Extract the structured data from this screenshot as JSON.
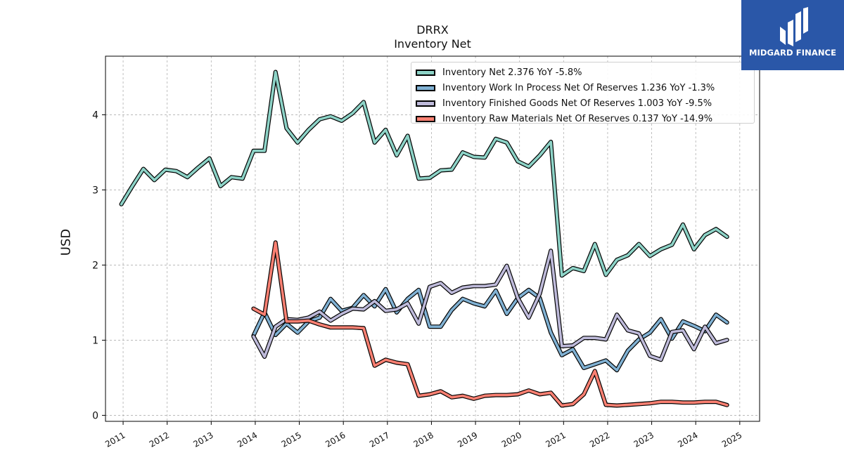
{
  "header": {
    "ticker": "DRRX",
    "subtitle": "Inventory Net"
  },
  "logo": {
    "text": "MIDGARD FINANCE"
  },
  "chart_data": {
    "type": "line",
    "ylabel": "USD",
    "xlim": [
      2010.6,
      2025.45
    ],
    "ylim": [
      -0.08,
      4.78
    ],
    "yticks": [
      0,
      1,
      2,
      3,
      4
    ],
    "xticks": [
      2011,
      2012,
      2013,
      2014,
      2015,
      2016,
      2017,
      2018,
      2019,
      2020,
      2021,
      2022,
      2023,
      2024,
      2025
    ],
    "grid": true,
    "legend_position": "top-right",
    "series": [
      {
        "name": "Inventory Net",
        "legend": "Inventory Net  2.376 YoY -5.8%",
        "color": "#8dd3c7",
        "x": [
          2010.96,
          2011.21,
          2011.46,
          2011.71,
          2011.96,
          2012.21,
          2012.46,
          2012.71,
          2012.96,
          2013.21,
          2013.46,
          2013.71,
          2013.96,
          2014.21,
          2014.46,
          2014.71,
          2014.96,
          2015.21,
          2015.46,
          2015.71,
          2015.96,
          2016.21,
          2016.46,
          2016.71,
          2016.96,
          2017.21,
          2017.46,
          2017.71,
          2017.96,
          2018.21,
          2018.46,
          2018.71,
          2018.96,
          2019.21,
          2019.46,
          2019.71,
          2019.96,
          2020.21,
          2020.46,
          2020.71,
          2020.96,
          2021.21,
          2021.46,
          2021.71,
          2021.96,
          2022.21,
          2022.46,
          2022.71,
          2022.96,
          2023.21,
          2023.46,
          2023.71,
          2023.96,
          2024.21,
          2024.46,
          2024.71
        ],
        "values": [
          2.81,
          3.05,
          3.28,
          3.13,
          3.27,
          3.25,
          3.17,
          3.3,
          3.42,
          3.05,
          3.17,
          3.15,
          3.52,
          3.52,
          4.57,
          3.82,
          3.63,
          3.8,
          3.94,
          3.98,
          3.92,
          4.02,
          4.17,
          3.63,
          3.8,
          3.46,
          3.72,
          3.15,
          3.16,
          3.26,
          3.27,
          3.5,
          3.44,
          3.43,
          3.68,
          3.63,
          3.38,
          3.31,
          3.46,
          3.64,
          1.86,
          1.96,
          1.92,
          2.28,
          1.87,
          2.07,
          2.13,
          2.28,
          2.12,
          2.21,
          2.27,
          2.54,
          2.21,
          2.4,
          2.48,
          2.376
        ]
      },
      {
        "name": "Inventory Work In Process Net Of Reserves",
        "legend": "Inventory Work In Process Net Of Reserves  1.236 YoY -1.3%",
        "color": "#80b1d3",
        "x": [
          2013.96,
          2014.21,
          2014.46,
          2014.71,
          2014.96,
          2015.21,
          2015.46,
          2015.71,
          2015.96,
          2016.21,
          2016.46,
          2016.71,
          2016.96,
          2017.21,
          2017.46,
          2017.71,
          2017.96,
          2018.21,
          2018.46,
          2018.71,
          2018.96,
          2019.21,
          2019.46,
          2019.71,
          2019.96,
          2020.21,
          2020.46,
          2020.71,
          2020.96,
          2021.21,
          2021.46,
          2021.71,
          2021.96,
          2022.21,
          2022.46,
          2022.71,
          2022.96,
          2023.21,
          2023.46,
          2023.71,
          2023.96,
          2024.21,
          2024.46,
          2024.71
        ],
        "values": [
          1.06,
          1.37,
          1.07,
          1.22,
          1.1,
          1.25,
          1.3,
          1.55,
          1.39,
          1.43,
          1.6,
          1.45,
          1.68,
          1.37,
          1.55,
          1.67,
          1.18,
          1.18,
          1.4,
          1.55,
          1.49,
          1.45,
          1.66,
          1.35,
          1.56,
          1.67,
          1.56,
          1.1,
          0.8,
          0.88,
          0.63,
          0.68,
          0.73,
          0.6,
          0.86,
          1.01,
          1.1,
          1.28,
          1.02,
          1.25,
          1.19,
          1.12,
          1.34,
          1.236
        ]
      },
      {
        "name": "Inventory Finished Goods Net Of Reserves",
        "legend": "Inventory Finished Goods Net Of Reserves  1.003 YoY -9.5%",
        "color": "#bebada",
        "x": [
          2013.96,
          2014.21,
          2014.46,
          2014.71,
          2014.96,
          2015.21,
          2015.46,
          2015.71,
          2015.96,
          2016.21,
          2016.46,
          2016.71,
          2016.96,
          2017.21,
          2017.46,
          2017.71,
          2017.96,
          2018.21,
          2018.46,
          2018.71,
          2018.96,
          2019.21,
          2019.46,
          2019.71,
          2019.96,
          2020.21,
          2020.46,
          2020.71,
          2020.96,
          2021.21,
          2021.46,
          2021.71,
          2021.96,
          2022.21,
          2022.46,
          2022.71,
          2022.96,
          2023.21,
          2023.46,
          2023.71,
          2023.96,
          2024.21,
          2024.46,
          2024.71
        ],
        "values": [
          1.05,
          0.78,
          1.18,
          1.28,
          1.27,
          1.3,
          1.38,
          1.26,
          1.35,
          1.42,
          1.41,
          1.52,
          1.39,
          1.41,
          1.49,
          1.22,
          1.71,
          1.76,
          1.63,
          1.7,
          1.72,
          1.72,
          1.74,
          1.99,
          1.56,
          1.3,
          1.62,
          2.19,
          0.92,
          0.93,
          1.03,
          1.03,
          1.01,
          1.34,
          1.13,
          1.09,
          0.79,
          0.74,
          1.11,
          1.13,
          0.88,
          1.18,
          0.96,
          1.003
        ]
      },
      {
        "name": "Inventory Raw Materials Net Of Reserves",
        "legend": "Inventory Raw Materials Net Of Reserves  0.137 YoY -14.9%",
        "color": "#fb8072",
        "x": [
          2013.96,
          2014.21,
          2014.46,
          2014.71,
          2014.96,
          2015.21,
          2015.46,
          2015.71,
          2015.96,
          2016.21,
          2016.46,
          2016.71,
          2016.96,
          2017.21,
          2017.46,
          2017.71,
          2017.96,
          2018.21,
          2018.46,
          2018.71,
          2018.96,
          2019.21,
          2019.46,
          2019.71,
          2019.96,
          2020.21,
          2020.46,
          2020.71,
          2020.96,
          2021.21,
          2021.46,
          2021.71,
          2021.96,
          2022.21,
          2022.46,
          2022.71,
          2022.96,
          2023.21,
          2023.46,
          2023.71,
          2023.96,
          2024.21,
          2024.46,
          2024.71
        ],
        "values": [
          1.42,
          1.34,
          2.3,
          1.25,
          1.25,
          1.26,
          1.21,
          1.17,
          1.17,
          1.17,
          1.16,
          0.66,
          0.74,
          0.7,
          0.68,
          0.26,
          0.28,
          0.32,
          0.24,
          0.26,
          0.22,
          0.26,
          0.27,
          0.27,
          0.28,
          0.33,
          0.28,
          0.3,
          0.13,
          0.15,
          0.28,
          0.59,
          0.14,
          0.13,
          0.14,
          0.15,
          0.16,
          0.18,
          0.18,
          0.17,
          0.17,
          0.18,
          0.18,
          0.137
        ]
      }
    ]
  }
}
